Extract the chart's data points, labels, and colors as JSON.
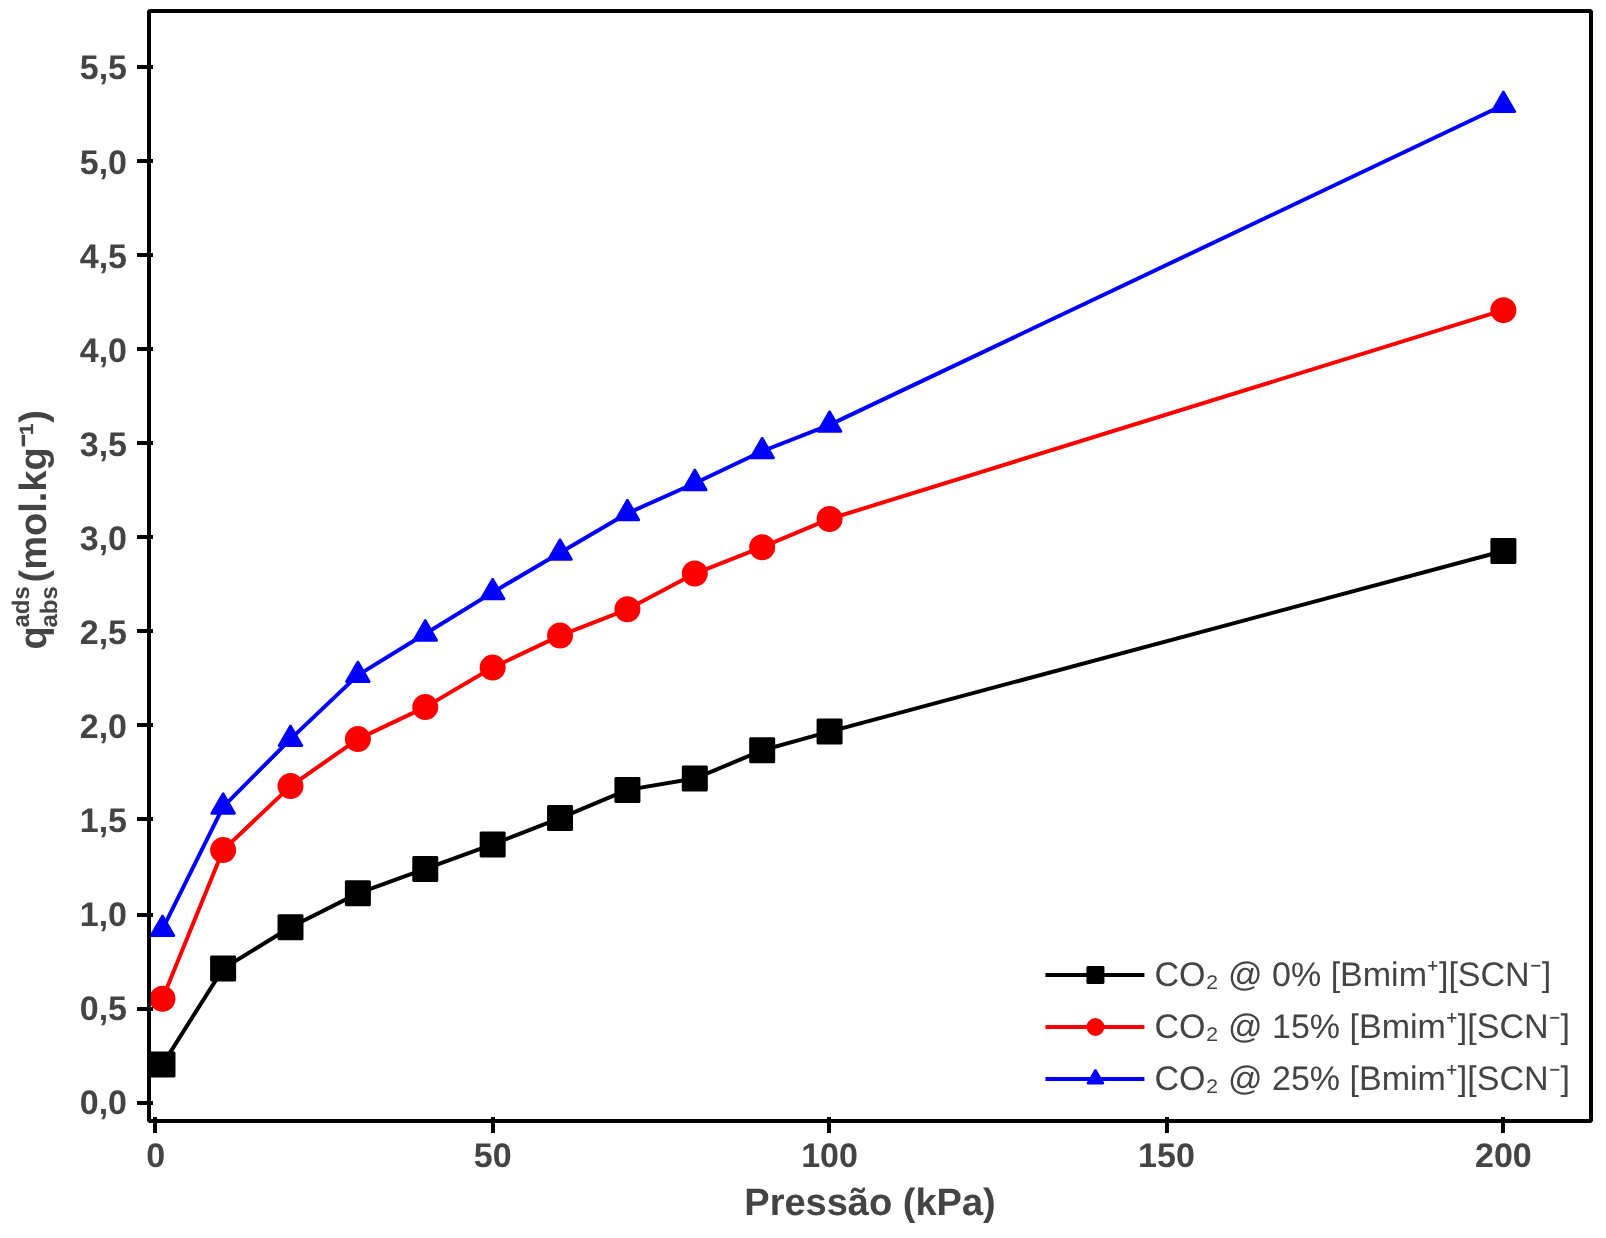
{
  "chart_data": {
    "type": "line",
    "xlabel": "Pressão (kPa)",
    "ylabel": "q$^{ads}$$_{abs}$(mol.kg⁻¹)",
    "x": [
      1,
      10,
      20,
      30,
      40,
      50,
      60,
      70,
      80,
      90,
      100,
      200
    ],
    "series": [
      {
        "name": "CO₂ @ 0% [Bmim⁺][SCN⁻]",
        "color": "#000000",
        "marker": "square",
        "values": [
          0.2,
          0.71,
          0.93,
          1.11,
          1.24,
          1.37,
          1.51,
          1.66,
          1.72,
          1.87,
          1.97,
          2.93
        ]
      },
      {
        "name": "CO₂ @ 15% [Bmim⁺][SCN⁻]",
        "color": "#ff0000",
        "marker": "circle",
        "values": [
          0.55,
          1.34,
          1.68,
          1.93,
          2.1,
          2.31,
          2.48,
          2.62,
          2.81,
          2.95,
          3.1,
          4.21
        ]
      },
      {
        "name": "CO₂ @ 25% [Bmim⁺][SCN⁻]",
        "color": "#0000ff",
        "marker": "triangle",
        "values": [
          0.92,
          1.57,
          1.93,
          2.27,
          2.49,
          2.71,
          2.92,
          3.13,
          3.29,
          3.46,
          3.6,
          5.3
        ]
      }
    ],
    "xlim": [
      -1,
      213
    ],
    "ylim": [
      -0.1,
      5.8
    ],
    "xticks": [
      0,
      50,
      100,
      150,
      200
    ],
    "yticks": [
      {
        "value": 0,
        "label": "0,0"
      },
      {
        "value": 0.5,
        "label": "0,5"
      },
      {
        "value": 1,
        "label": "1,0"
      },
      {
        "value": 1.5,
        "label": "1,5"
      },
      {
        "value": 2,
        "label": "2,0"
      },
      {
        "value": 2.5,
        "label": "2,5"
      },
      {
        "value": 3,
        "label": "3,0"
      },
      {
        "value": 3.5,
        "label": "3,5"
      },
      {
        "value": 4,
        "label": "4,0"
      },
      {
        "value": 4.5,
        "label": "4,5"
      },
      {
        "value": 5,
        "label": "5,0"
      },
      {
        "value": 5.5,
        "label": "5,5"
      }
    ],
    "grid": false,
    "legend": "bottom right",
    "line_style": "solid"
  }
}
